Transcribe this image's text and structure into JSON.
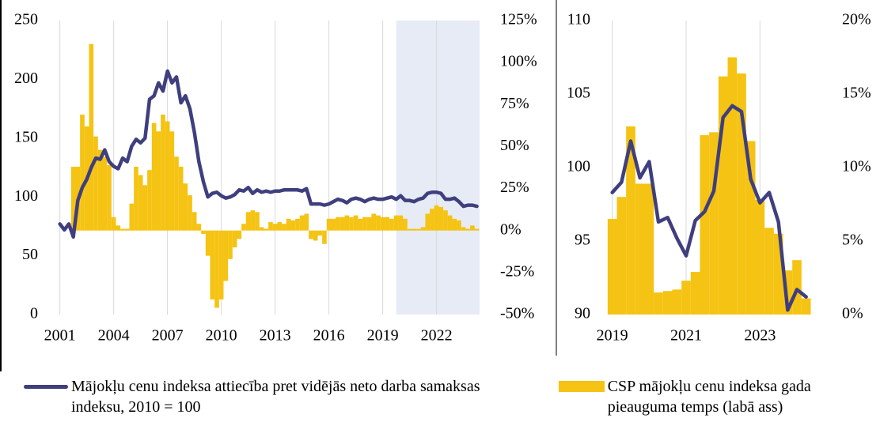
{
  "chart_data": [
    {
      "type": "combo",
      "x": [
        2001,
        2001.25,
        2001.5,
        2001.75,
        2002,
        2002.25,
        2002.5,
        2002.75,
        2003,
        2003.25,
        2003.5,
        2003.75,
        2004,
        2004.25,
        2004.5,
        2004.75,
        2005,
        2005.25,
        2005.5,
        2005.75,
        2006,
        2006.25,
        2006.5,
        2006.75,
        2007,
        2007.25,
        2007.5,
        2007.75,
        2008,
        2008.25,
        2008.5,
        2008.75,
        2009,
        2009.25,
        2009.5,
        2009.75,
        2010,
        2010.25,
        2010.5,
        2010.75,
        2011,
        2011.25,
        2011.5,
        2011.75,
        2012,
        2012.25,
        2012.5,
        2012.75,
        2013,
        2013.25,
        2013.5,
        2013.75,
        2014,
        2014.25,
        2014.5,
        2014.75,
        2015,
        2015.25,
        2015.5,
        2015.75,
        2016,
        2016.25,
        2016.5,
        2016.75,
        2017,
        2017.25,
        2017.5,
        2017.75,
        2018,
        2018.25,
        2018.5,
        2018.75,
        2019,
        2019.25,
        2019.5,
        2019.75,
        2020,
        2020.25,
        2020.5,
        2020.75,
        2021,
        2021.25,
        2021.5,
        2021.75,
        2022,
        2022.25,
        2022.5,
        2022.75,
        2023,
        2023.25,
        2023.5,
        2023.75,
        2024,
        2024.25
      ],
      "series": [
        {
          "name": "CSP mājokļu cenu indeksa gada pieauguma temps (labā ass)",
          "type": "bar",
          "axis": "y2",
          "color": "#f5c313",
          "values": [
            0,
            0,
            0,
            38,
            38,
            69,
            62,
            111,
            56,
            48,
            44,
            39,
            8,
            3,
            1,
            1,
            16,
            38,
            33,
            27,
            36,
            64,
            59,
            69,
            65,
            59,
            44,
            38,
            28,
            21,
            11,
            4,
            -2,
            -15,
            -41,
            -46,
            -41,
            -30,
            -17,
            -10,
            -5,
            4,
            11,
            12,
            11,
            2,
            1,
            5,
            4,
            5,
            4,
            7,
            6,
            7,
            9,
            10,
            -5,
            -6,
            -3,
            -8,
            7,
            7,
            8,
            8,
            9,
            8,
            9,
            7,
            8,
            8,
            10,
            9,
            8,
            8,
            7,
            9,
            9,
            7,
            1,
            1,
            1,
            2,
            10,
            13,
            15,
            14,
            12,
            9,
            7,
            6,
            2,
            1,
            3,
            1
          ]
        },
        {
          "name": "Mājokļu cenu indeksa attiecība pret vidējās neto darba samaksas indeksu, 2010 = 100",
          "type": "line",
          "axis": "y",
          "color": "#3f3f7e",
          "values": [
            77,
            72,
            77,
            66,
            97,
            108,
            115,
            125,
            133,
            132,
            140,
            130,
            126,
            124,
            133,
            130,
            143,
            149,
            146,
            150,
            183,
            186,
            197,
            190,
            207,
            197,
            202,
            180,
            186,
            175,
            155,
            130,
            113,
            100,
            103,
            104,
            101,
            99,
            100,
            102,
            106,
            105,
            108,
            103,
            106,
            104,
            105,
            104,
            105,
            105,
            106,
            106,
            106,
            106,
            105,
            107,
            94,
            94,
            94,
            93,
            94,
            96,
            98,
            97,
            95,
            98,
            99,
            98,
            96,
            98,
            99,
            98,
            98,
            99,
            100,
            98,
            101,
            97,
            97,
            96,
            98,
            99,
            103,
            104,
            104,
            103,
            98,
            98,
            99,
            96,
            92,
            93,
            93,
            92
          ]
        }
      ],
      "xlim": [
        2000.75,
        2024.4
      ],
      "xticks": [
        2001,
        2004,
        2007,
        2010,
        2013,
        2016,
        2019,
        2022
      ],
      "ylim": [
        0,
        250
      ],
      "yticks": [
        0,
        50,
        100,
        150,
        200,
        250
      ],
      "y2lim": [
        -50,
        125
      ],
      "y2ticks": [
        {
          "value": -50,
          "label": "-50%"
        },
        {
          "value": -25,
          "label": "-25%"
        },
        {
          "value": 0,
          "label": "0%"
        },
        {
          "value": 25,
          "label": "25%"
        },
        {
          "value": 50,
          "label": "50%"
        },
        {
          "value": 75,
          "label": "75%"
        },
        {
          "value": 100,
          "label": "100%"
        },
        {
          "value": 125,
          "label": "125%"
        }
      ],
      "shaded_xrange": [
        2019.75,
        2024.4
      ],
      "shade_color": "#e6ebf5",
      "grid": "x"
    },
    {
      "type": "combo",
      "x": [
        2019,
        2019.25,
        2019.5,
        2019.75,
        2020,
        2020.25,
        2020.5,
        2020.75,
        2021,
        2021.25,
        2021.5,
        2021.75,
        2022,
        2022.25,
        2022.5,
        2022.75,
        2023,
        2023.25,
        2023.5,
        2023.75,
        2024,
        2024.25
      ],
      "series": [
        {
          "type": "bar",
          "axis": "y2",
          "color": "#f5c313",
          "values": [
            6.5,
            8,
            12.8,
            8.9,
            8.9,
            1.5,
            1.6,
            1.7,
            2.3,
            2.9,
            12.2,
            12.4,
            16.2,
            17.5,
            16.4,
            11.8,
            7.8,
            5.9,
            5.5,
            3,
            3.7,
            1.1
          ]
        },
        {
          "type": "line",
          "axis": "y",
          "color": "#3f3f7e",
          "values": [
            98.3,
            99,
            101.8,
            99.3,
            100.4,
            96.3,
            96.6,
            95.2,
            94,
            96.4,
            97,
            98.4,
            103.4,
            104.2,
            103.8,
            99.2,
            97.6,
            98.3,
            96.3,
            90.3,
            91.7,
            91.2
          ]
        }
      ],
      "xlim": [
        2018.6,
        2024.6
      ],
      "xticks": [
        2019,
        2021,
        2023
      ],
      "ylim": [
        90,
        110
      ],
      "yticks": [
        90,
        95,
        100,
        105,
        110
      ],
      "y2lim": [
        0,
        20
      ],
      "y2ticks": [
        {
          "value": 0,
          "label": "0%"
        },
        {
          "value": 5,
          "label": "5%"
        },
        {
          "value": 10,
          "label": "10%"
        },
        {
          "value": 15,
          "label": "15%"
        },
        {
          "value": 20,
          "label": "20%"
        }
      ],
      "grid": "x"
    }
  ]
}
